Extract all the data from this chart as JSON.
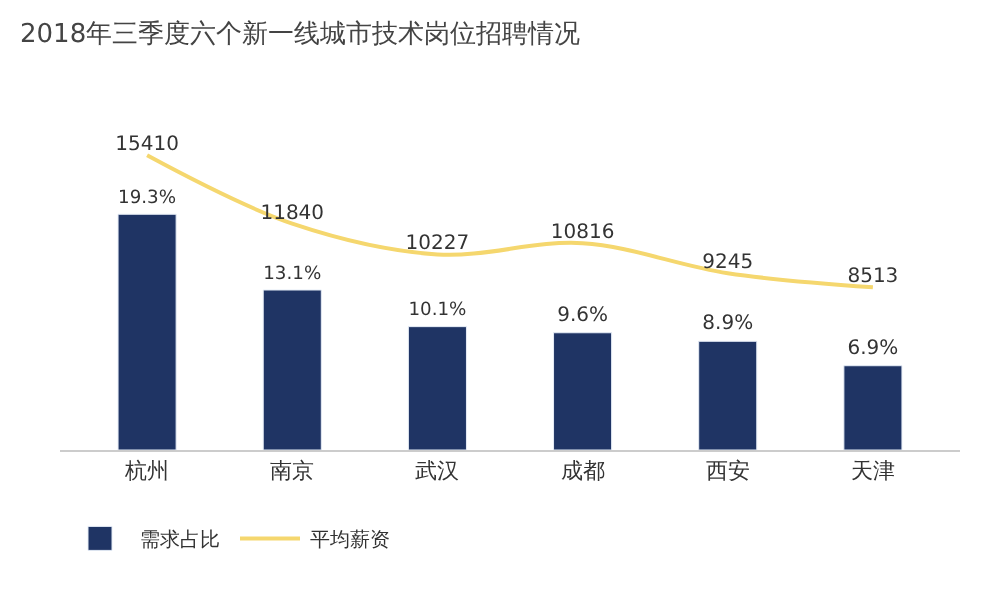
{
  "chart_data": {
    "type": "bar",
    "title": "2018年三季度六个新一线城市技术岗位招聘情况",
    "categories": [
      "杭州",
      "南京",
      "武汉",
      "成都",
      "西安",
      "天津"
    ],
    "series": [
      {
        "name": "需求占比",
        "color": "#1f3464",
        "values": [
          19.3,
          13.1,
          10.1,
          9.6,
          8.9,
          6.9
        ],
        "value_labels": [
          "19.3%",
          "13.1%",
          "10.1%",
          "9.6%",
          "8.9%",
          "6.9%"
        ]
      },
      {
        "name": "平均薪资",
        "type": "line",
        "axis": "y2",
        "color": "#f5d76e",
        "values": [
          15410,
          11840,
          10227,
          10816,
          9245,
          8513
        ],
        "value_labels": [
          "15410",
          "11840",
          "10227",
          "10816",
          "9245",
          "8513"
        ]
      }
    ],
    "tick_labels": "x",
    "legend": "bottom left",
    "marker": "none"
  }
}
